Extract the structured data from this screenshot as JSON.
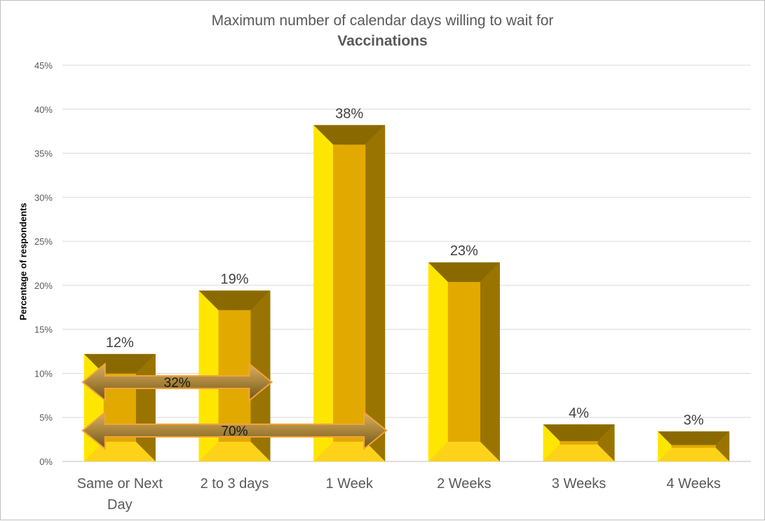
{
  "chart_data": {
    "type": "bar",
    "title": "Maximum number of calendar days willing to wait for",
    "subtitle": "Vaccinations",
    "xlabel": "",
    "ylabel": "Percentage of respondents",
    "categories": [
      "Same or Next Day",
      "2 to 3 days",
      "1 Week",
      "2 Weeks",
      "3 Weeks",
      "4 Weeks"
    ],
    "category_lines": [
      [
        "Same or Next",
        "Day"
      ],
      [
        "2 to 3 days"
      ],
      [
        "1 Week"
      ],
      [
        "2 Weeks"
      ],
      [
        "3 Weeks"
      ],
      [
        "4 Weeks"
      ]
    ],
    "values": [
      12.2,
      19.4,
      38.2,
      22.6,
      4.2,
      3.4
    ],
    "data_labels": [
      "12%",
      "19%",
      "38%",
      "23%",
      "4%",
      "3%"
    ],
    "ylim": [
      0,
      45
    ],
    "yticks": [
      0,
      5,
      10,
      15,
      20,
      25,
      30,
      35,
      40,
      45
    ],
    "ytick_labels": [
      "0%",
      "5%",
      "10%",
      "15%",
      "20%",
      "25%",
      "30%",
      "35%",
      "40%",
      "45%"
    ],
    "grid": true,
    "legend": "none",
    "colors": {
      "bar_light": "#ffe600",
      "bar_mid": "#e0a800",
      "bar_dark": "#8a6a00",
      "arrow": "#b08a3a",
      "arrow_outline": "#f2a33a"
    },
    "annotations": [
      {
        "label": "32%",
        "y": 9,
        "from_category": 0,
        "to_category": 1
      },
      {
        "label": "70%",
        "y": 3.5,
        "from_category": 0,
        "to_category": 2
      }
    ]
  }
}
